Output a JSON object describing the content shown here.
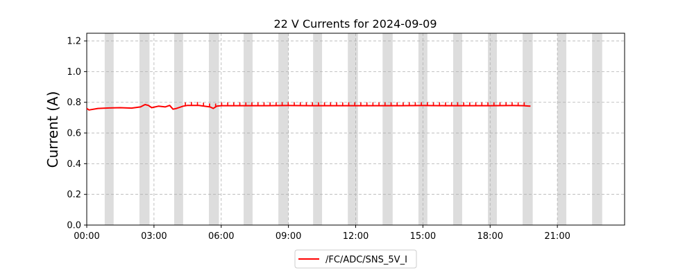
{
  "chart_data": {
    "type": "line",
    "title": "22 V Currents for 2024-09-09",
    "xlabel": "",
    "ylabel": "Current (A)",
    "xlim_hours": [
      0,
      24
    ],
    "ylim": [
      0,
      1.25
    ],
    "x_tick_labels": [
      "00:00",
      "03:00",
      "06:00",
      "09:00",
      "12:00",
      "15:00",
      "18:00",
      "21:00"
    ],
    "y_tick_labels": [
      "0.0",
      "0.2",
      "0.4",
      "0.6",
      "0.8",
      "1.0",
      "1.2"
    ],
    "grid": true,
    "legend_position": "bottom-center",
    "shaded_bands_hours": [
      [
        0.8,
        1.2
      ],
      [
        2.35,
        2.8
      ],
      [
        3.9,
        4.3
      ],
      [
        5.45,
        5.9
      ],
      [
        7.0,
        7.4
      ],
      [
        8.55,
        9.0
      ],
      [
        10.1,
        10.5
      ],
      [
        11.65,
        12.1
      ],
      [
        13.2,
        13.65
      ],
      [
        14.8,
        15.2
      ],
      [
        16.35,
        16.75
      ],
      [
        17.9,
        18.3
      ],
      [
        19.45,
        19.9
      ],
      [
        21.0,
        21.4
      ],
      [
        22.55,
        23.0
      ]
    ],
    "series": [
      {
        "name": "/FC/ADC/SNS_5V_I",
        "color": "#ff0000",
        "x_hours": [
          0.0,
          0.1,
          0.5,
          1.0,
          1.5,
          2.0,
          2.4,
          2.6,
          2.75,
          2.9,
          3.2,
          3.5,
          3.7,
          3.85,
          4.0,
          4.3,
          4.5,
          5.0,
          5.5,
          5.65,
          5.8,
          6.0,
          7.0,
          8.0,
          9.0,
          10.0,
          11.0,
          12.0,
          13.0,
          14.0,
          15.0,
          16.0,
          17.0,
          18.0,
          19.0,
          19.5,
          19.8
        ],
        "y": [
          0.76,
          0.75,
          0.76,
          0.763,
          0.765,
          0.762,
          0.77,
          0.785,
          0.78,
          0.765,
          0.775,
          0.77,
          0.78,
          0.755,
          0.76,
          0.775,
          0.78,
          0.78,
          0.77,
          0.76,
          0.775,
          0.778,
          0.778,
          0.778,
          0.779,
          0.778,
          0.778,
          0.778,
          0.778,
          0.778,
          0.779,
          0.778,
          0.778,
          0.778,
          0.779,
          0.778,
          0.775
        ]
      }
    ]
  }
}
